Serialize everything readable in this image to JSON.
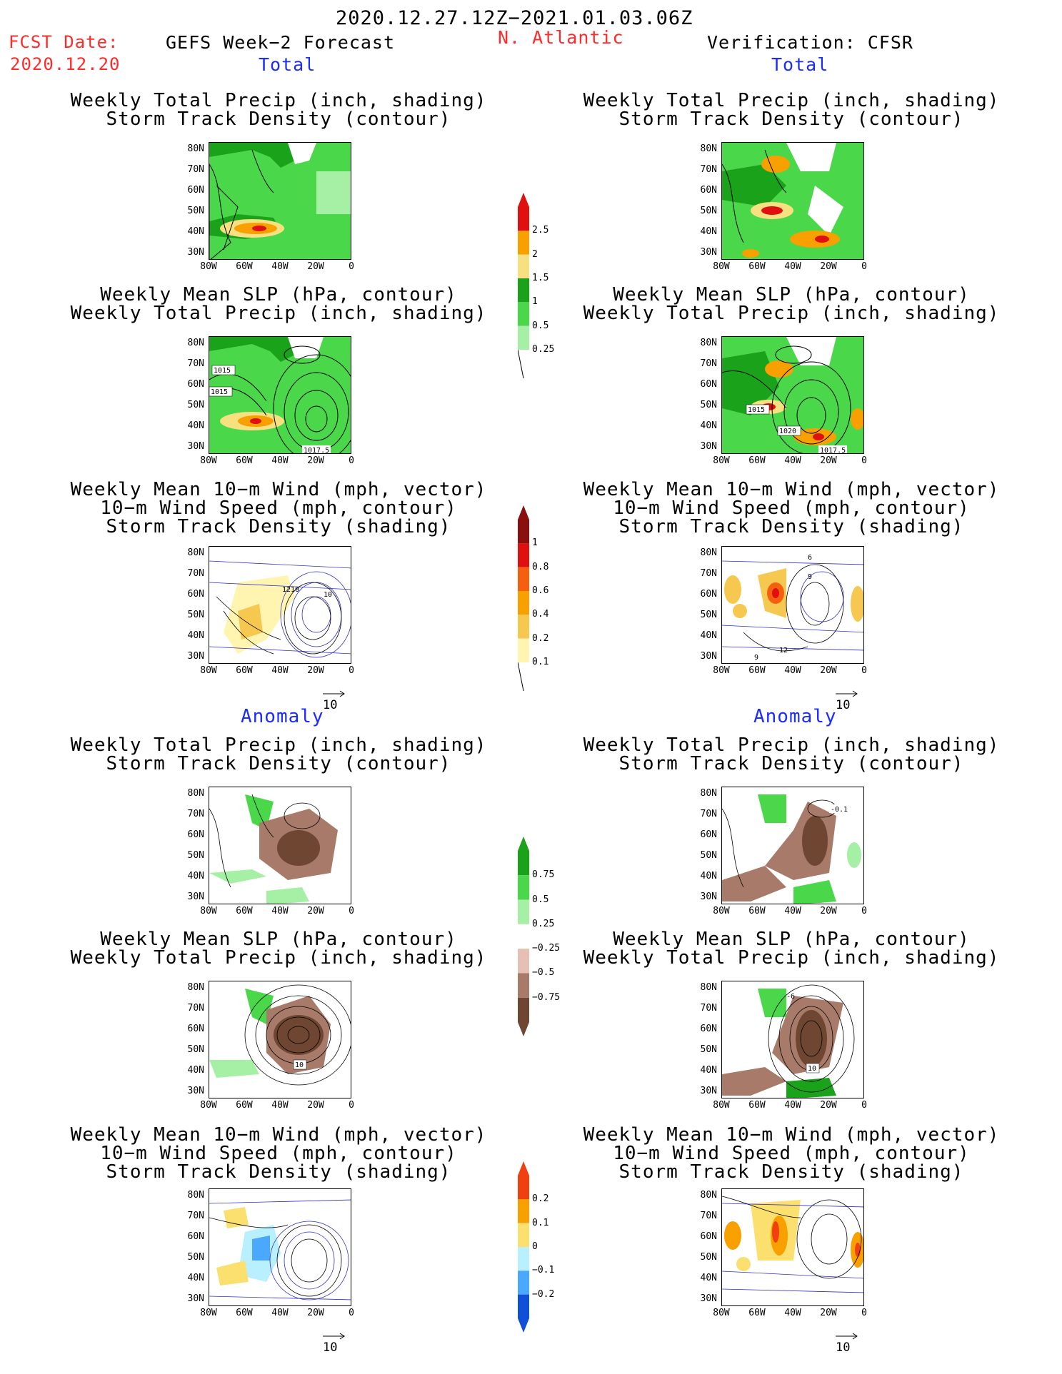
{
  "header": {
    "date_range": "2020.12.27.12Z−2021.01.03.06Z",
    "fcst_label": "FCST Date:",
    "fcst_date": "2020.12.20",
    "model": "GEFS Week−2 Forecast",
    "region": "N. Atlantic",
    "verification": "Verification: CFSR",
    "total": "Total",
    "anomaly": "Anomaly"
  },
  "panel_titles": {
    "precip_track": [
      "Weekly Total Precip (inch, shading)",
      "Storm Track Density (contour)"
    ],
    "slp_precip": [
      "Weekly Mean SLP (hPa, contour)",
      "Weekly Total Precip (inch, shading)"
    ],
    "wind_track": [
      "Weekly Mean 10−m Wind (mph, vector)",
      "10−m Wind Speed (mph, contour)",
      "Storm Track Density (shading)"
    ]
  },
  "axes": {
    "lat_ticks": [
      "80N",
      "70N",
      "60N",
      "50N",
      "40N",
      "30N"
    ],
    "lon_ticks": [
      "80W",
      "60W",
      "40W",
      "20W",
      "0"
    ]
  },
  "vector_ref": "10",
  "contour_labels": {
    "fcst_slp": [
      "1015",
      "1015",
      "1017.5"
    ],
    "cfsr_slp": [
      "1015",
      "1020",
      "1017.5"
    ],
    "fcst_wind": [
      "12",
      "10",
      "10"
    ],
    "cfsr_wind": [
      "6",
      "9",
      "12",
      "9"
    ],
    "fcst_anom_slp": [
      "10"
    ],
    "cfsr_anom_slp": [
      "10",
      "-6"
    ],
    "cfsr_anom_track": [
      "-0.1"
    ]
  },
  "colorbars": {
    "precip_total": {
      "labels": [
        "2.5",
        "2",
        "1.5",
        "1",
        "0.5",
        "0.25"
      ],
      "colors": [
        "#e01010",
        "#f7a000",
        "#f7e080",
        "#1aa21a",
        "#4ad84a",
        "#a6f0a6"
      ]
    },
    "track_total": {
      "labels": [
        "1",
        "0.8",
        "0.6",
        "0.4",
        "0.2",
        "0.1"
      ],
      "colors": [
        "#8a1010",
        "#e01010",
        "#f46010",
        "#f7a000",
        "#f7c850",
        "#fff4b0"
      ]
    },
    "precip_anom": {
      "labels": [
        "0.75",
        "0.5",
        "0.25",
        "−0.25",
        "−0.5",
        "−0.75"
      ],
      "colors": [
        "#1aa21a",
        "#4ad84a",
        "#a6f0a6",
        "#ffffff",
        "#e6c0b4",
        "#a87a6a",
        "#6e4632"
      ]
    },
    "track_anom": {
      "labels": [
        "0.2",
        "0.1",
        "0",
        "−0.1",
        "−0.2"
      ],
      "colors": [
        "#f04010",
        "#f7a000",
        "#fbe070",
        "#b8f0ff",
        "#4aa8ff",
        "#1050d8"
      ]
    }
  },
  "colors": {
    "land_outline": "#000000",
    "vector": "#3030c8",
    "red_text": "#ff2a2a",
    "blue_text": "#1c2cff"
  }
}
